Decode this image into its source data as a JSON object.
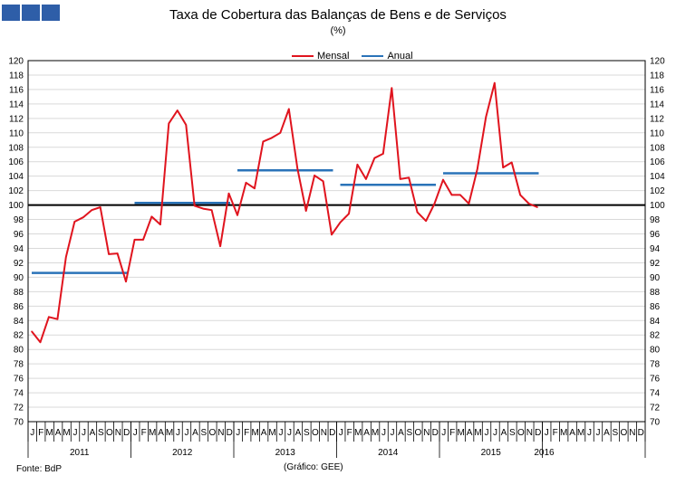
{
  "logo": {
    "name": "bdp-logo"
  },
  "title": "Taxa de Cobertura das Balanças de Bens e de Serviços",
  "subtitle": "(%)",
  "source": "Fonte: BdP",
  "credit": "(Gráfico: GEE)",
  "chart_data": {
    "type": "line",
    "title": "Taxa de Cobertura das Balanças de Bens e de Serviços",
    "ylabel": "",
    "xlabel": "",
    "ylim": [
      70,
      120
    ],
    "yticks": [
      70,
      72,
      74,
      76,
      78,
      80,
      82,
      84,
      86,
      88,
      90,
      92,
      94,
      96,
      98,
      100,
      102,
      104,
      106,
      108,
      110,
      112,
      114,
      116,
      118,
      120
    ],
    "reference_line": 100,
    "legend_position": "top-center",
    "grid": true,
    "month_labels": [
      "J",
      "F",
      "M",
      "A",
      "M",
      "J",
      "J",
      "A",
      "S",
      "O",
      "N",
      "D"
    ],
    "years": [
      "2011",
      "2012",
      "2013",
      "2014",
      "2015",
      "2016"
    ],
    "series": [
      {
        "name": "Mensal",
        "color": "#e0141e",
        "values": [
          82.5,
          81.0,
          84.5,
          84.2,
          92.8,
          97.7,
          98.3,
          99.3,
          99.7,
          93.2,
          93.3,
          89.4,
          95.2,
          95.2,
          98.4,
          97.3,
          111.3,
          113.1,
          111.1,
          99.9,
          99.5,
          99.3,
          94.3,
          101.6,
          98.6,
          103.1,
          102.3,
          108.8,
          109.3,
          110.0,
          113.3,
          105.1,
          99.2,
          104.1,
          103.3,
          95.9,
          97.6,
          98.8,
          105.6,
          103.6,
          106.5,
          107.1,
          116.2,
          103.6,
          103.8,
          99.0,
          97.8,
          100.2,
          103.5,
          101.4,
          101.4,
          100.2,
          105.0,
          112.2,
          116.9,
          105.2,
          105.9,
          101.4,
          100.2,
          99.7
        ]
      },
      {
        "name": "Anual",
        "color": "#2a73b8",
        "values": [
          90.6,
          100.3,
          104.8,
          102.8,
          104.4
        ]
      }
    ]
  }
}
